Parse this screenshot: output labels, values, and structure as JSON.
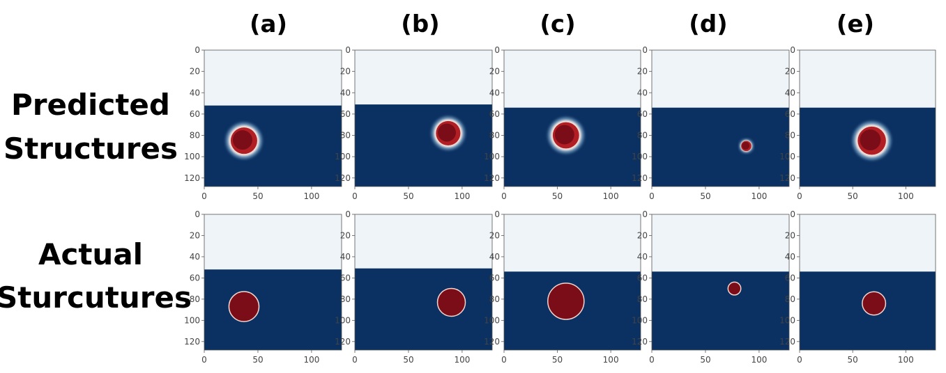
{
  "columns": [
    "(a)",
    "(b)",
    "(c)",
    "(d)",
    "(e)"
  ],
  "rows": [
    {
      "label_lines": [
        "Predicted",
        "Structures"
      ]
    },
    {
      "label_lines": [
        "Actual",
        "Sturcutures"
      ]
    }
  ],
  "axes": {
    "x_ticks": [
      "0",
      "50",
      "100"
    ],
    "y_ticks": [
      "0",
      "20",
      "40",
      "60",
      "80",
      "100",
      "120"
    ],
    "xlim": [
      0,
      128
    ],
    "ylim": [
      0,
      128
    ]
  },
  "colors": {
    "background_region": "#eef4f8",
    "substrate": "#0a3162",
    "structure": "#7a0d17",
    "structure_edge": "#f2d6cf"
  },
  "panels": [
    {
      "row": 0,
      "col": 0,
      "interface_y": 52,
      "structure": {
        "cx": 37,
        "cy": 85,
        "r": 13
      }
    },
    {
      "row": 0,
      "col": 1,
      "interface_y": 51,
      "structure": {
        "cx": 87,
        "cy": 78,
        "r": 12
      }
    },
    {
      "row": 0,
      "col": 2,
      "interface_y": 54,
      "structure": {
        "cx": 58,
        "cy": 80,
        "r": 13
      }
    },
    {
      "row": 0,
      "col": 3,
      "interface_y": 54,
      "structure": {
        "cx": 88,
        "cy": 90,
        "r": 5
      }
    },
    {
      "row": 0,
      "col": 4,
      "interface_y": 54,
      "structure": {
        "cx": 68,
        "cy": 85,
        "r": 14
      }
    },
    {
      "row": 1,
      "col": 0,
      "interface_y": 52,
      "structure": {
        "cx": 37,
        "cy": 87,
        "r": 14
      }
    },
    {
      "row": 1,
      "col": 1,
      "interface_y": 51,
      "structure": {
        "cx": 90,
        "cy": 83,
        "r": 13
      }
    },
    {
      "row": 1,
      "col": 2,
      "interface_y": 54,
      "structure": {
        "cx": 58,
        "cy": 82,
        "r": 17
      }
    },
    {
      "row": 1,
      "col": 3,
      "interface_y": 54,
      "structure": {
        "cx": 77,
        "cy": 70,
        "r": 6
      }
    },
    {
      "row": 1,
      "col": 4,
      "interface_y": 54,
      "structure": {
        "cx": 70,
        "cy": 84,
        "r": 11
      }
    }
  ]
}
